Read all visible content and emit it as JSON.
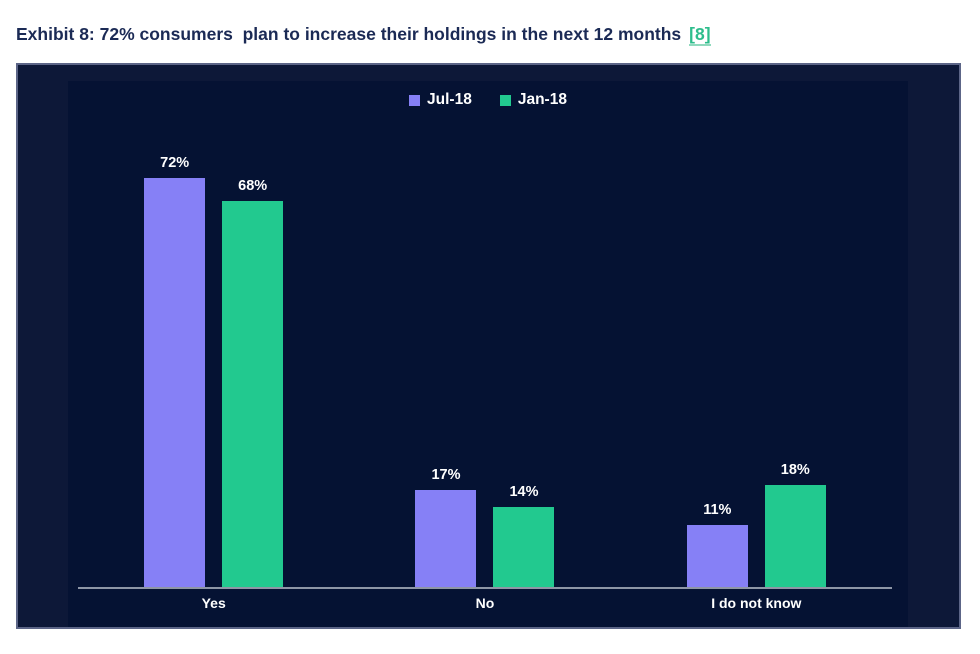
{
  "header": {
    "title": "Exhibit 8: 72% consumers  plan to increase their holdings in the next 12 months",
    "reference_link": "[8]"
  },
  "colors": {
    "title_text": "#1b2a55",
    "link_green": "#2EBD8C",
    "panel_background": "#0D1838",
    "plot_background": "#051233",
    "axis_line": "#8e96a6",
    "chart_text": "#ffffff"
  },
  "chart_data": {
    "type": "bar",
    "categories": [
      "Yes",
      "No",
      "I do not know"
    ],
    "series": [
      {
        "name": "Jul-18",
        "color": "#8680F6",
        "values": [
          72,
          17,
          11
        ],
        "labels": [
          "72%",
          "17%",
          "11%"
        ]
      },
      {
        "name": "Jan-18",
        "color": "#22C98F",
        "values": [
          68,
          14,
          18
        ],
        "labels": [
          "68%",
          "14%",
          "18%"
        ]
      }
    ],
    "title": "",
    "xlabel": "",
    "ylabel": "",
    "value_suffix": "%",
    "ylim": [
      0,
      80
    ],
    "grid": false,
    "legend_position": "top-center"
  }
}
